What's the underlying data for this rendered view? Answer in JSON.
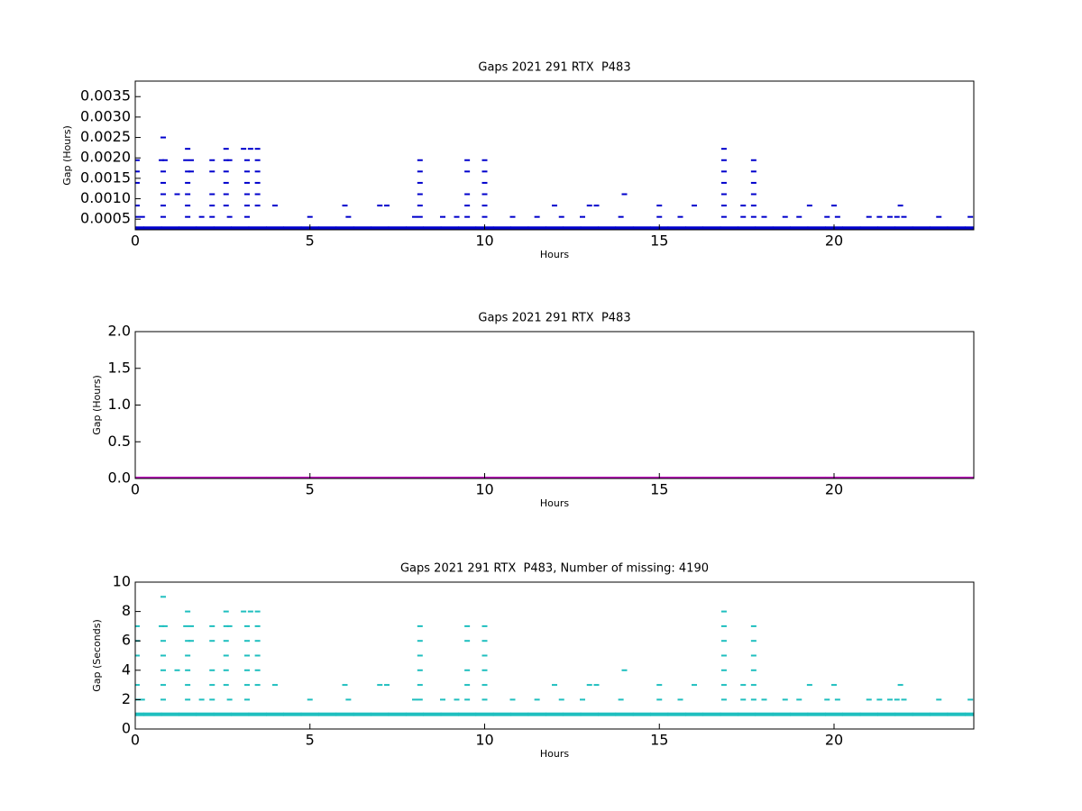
{
  "chart_data": [
    {
      "type": "scatter",
      "title": "Gaps 2021 291 RTX  P483",
      "x_label": "Hours",
      "y_label": "Gap (Hours)",
      "xlim": [
        0,
        24
      ],
      "xticks": [
        0,
        5,
        10,
        15,
        20
      ],
      "ylim": [
        0.00024,
        0.00388
      ],
      "yticks": [
        0.0005,
        {
          "value": 0.001,
          "label": "0.0010"
        },
        0.0015,
        {
          "value": 0.002,
          "label": "0.0020"
        },
        0.0025,
        {
          "value": 0.003,
          "label": "0.0030"
        },
        0.0035
      ],
      "series": [
        {
          "color": "#0000cc",
          "x": [
            0,
            0.5,
            1,
            1.5,
            2,
            2.5,
            3,
            3.5,
            4,
            4.5,
            5,
            5.5,
            6,
            6.5,
            7,
            7.5,
            8,
            8.5,
            9,
            9.5,
            10,
            10.5,
            11,
            11.5,
            12,
            12.5,
            13,
            13.5,
            14,
            14.5,
            15,
            15.5,
            16,
            16.5,
            17,
            17.5,
            18,
            18.5,
            19,
            19.5,
            20,
            20.5,
            21,
            21.5,
            22,
            22.5,
            23,
            23.5,
            24
          ],
          "values": [
            0.000278,
            0.000278,
            0.000278,
            0.000278,
            0.000278,
            0.000278,
            0.000278,
            0.000278,
            0.000278,
            0.000278,
            0.000278,
            0.000278,
            0.000278,
            0.000278,
            0.000278,
            0.000278,
            0.000278,
            0.000278,
            0.000278,
            0.000278,
            0.000278,
            0.000278,
            0.000278,
            0.000278,
            0.000278,
            0.000278,
            0.000278,
            0.000278,
            0.000278,
            0.000278,
            0.000278,
            0.000278,
            0.000278,
            0.000278,
            0.000278,
            0.000278,
            0.000278,
            0.000278,
            0.000278,
            0.000278,
            0.000278,
            0.000278,
            0.000278,
            0.000278,
            0.000278,
            0.000278,
            0.000278,
            0.000278,
            0.000278
          ]
        },
        {
          "color": "#0000cc",
          "x": [
            0.05,
            0.05,
            0.05,
            0.05,
            0.05,
            0.2,
            0.8,
            0.75,
            0.85,
            0.8,
            0.8,
            0.8,
            0.8,
            0.8,
            1.2,
            1.5,
            1.45,
            1.6,
            1.5,
            1.6,
            1.5,
            1.5,
            1.5,
            1.5,
            1.9,
            2.2,
            2.2,
            2.2,
            2.2,
            2.2,
            2.6,
            2.6,
            2.7,
            2.6,
            2.6,
            2.6,
            2.6,
            2.7,
            3.1,
            3.3,
            3.5,
            3.2,
            3.5,
            3.2,
            3.5,
            3.2,
            3.5,
            3.2,
            3.5,
            3.2,
            3.5,
            3.2,
            4.0,
            5.0,
            6.0,
            6.1,
            7.0,
            7.2,
            8.0,
            8.15,
            8.15,
            8.15,
            8.15,
            8.15,
            8.15,
            8.8,
            9.2,
            9.5,
            9.5,
            9.5,
            9.5,
            9.5,
            10.0,
            10.0,
            10.0,
            10.0,
            10.0,
            10.0,
            10.8,
            11.5,
            12.0,
            12.2,
            12.8,
            13.0,
            13.2,
            13.9,
            14.0,
            15.0,
            15.0,
            15.6,
            16.0,
            16.85,
            16.85,
            16.85,
            16.85,
            16.85,
            16.85,
            16.85,
            17.4,
            17.4,
            17.7,
            17.7,
            17.7,
            17.7,
            17.7,
            17.7,
            18.0,
            18.6,
            19.0,
            19.3,
            19.8,
            20.0,
            20.1,
            21.0,
            21.3,
            21.6,
            21.8,
            21.9,
            22.0,
            23.0,
            23.9
          ],
          "values": [
            0.001944,
            0.001667,
            0.001389,
            0.000833,
            0.000556,
            0.000556,
            0.0025,
            0.001944,
            0.001944,
            0.001667,
            0.001389,
            0.001111,
            0.000833,
            0.000556,
            0.001111,
            0.002222,
            0.001944,
            0.001944,
            0.001667,
            0.001667,
            0.001389,
            0.001111,
            0.000833,
            0.000556,
            0.000556,
            0.001944,
            0.001667,
            0.001111,
            0.000833,
            0.000556,
            0.002222,
            0.001944,
            0.001944,
            0.001667,
            0.001389,
            0.001111,
            0.000833,
            0.000556,
            0.002222,
            0.002222,
            0.002222,
            0.001944,
            0.001944,
            0.001667,
            0.001667,
            0.001389,
            0.001389,
            0.001111,
            0.001111,
            0.000833,
            0.000833,
            0.000556,
            0.000833,
            0.000556,
            0.000833,
            0.000556,
            0.000833,
            0.000833,
            0.000556,
            0.001944,
            0.001667,
            0.001389,
            0.001111,
            0.000833,
            0.000556,
            0.000556,
            0.000556,
            0.001944,
            0.001667,
            0.001111,
            0.000833,
            0.000556,
            0.001944,
            0.001667,
            0.001389,
            0.001111,
            0.000833,
            0.000556,
            0.000556,
            0.000556,
            0.000833,
            0.000556,
            0.000556,
            0.000833,
            0.000833,
            0.000556,
            0.001111,
            0.000833,
            0.000556,
            0.000556,
            0.000833,
            0.002222,
            0.001944,
            0.001667,
            0.001389,
            0.001111,
            0.000833,
            0.000556,
            0.000833,
            0.000556,
            0.001944,
            0.001667,
            0.001389,
            0.001111,
            0.000833,
            0.000556,
            0.000556,
            0.000556,
            0.000556,
            0.000833,
            0.000556,
            0.000833,
            0.000556,
            0.000556,
            0.000556,
            0.000556,
            0.000556,
            0.000833,
            0.000556,
            0.000556,
            0.000556
          ]
        }
      ]
    },
    {
      "type": "scatter",
      "title": "Gaps 2021 291 RTX  P483",
      "x_label": "Hours",
      "y_label": "Gap (Hours)",
      "xlim": [
        0,
        24
      ],
      "xticks": [
        0,
        5,
        10,
        15,
        20
      ],
      "ylim": [
        0,
        2
      ],
      "yticks": [
        {
          "value": 0,
          "label": "0.0"
        },
        0.5,
        {
          "value": 1,
          "label": "1.0"
        },
        1.5,
        {
          "value": 2,
          "label": "2.0"
        }
      ],
      "series": [
        {
          "color": "#bf00bf",
          "x": [
            0,
            0.5,
            1,
            1.5,
            2,
            2.5,
            3,
            3.5,
            4,
            4.5,
            5,
            5.5,
            6,
            6.5,
            7,
            7.5,
            8,
            8.5,
            9,
            9.5,
            10,
            10.5,
            11,
            11.5,
            12,
            12.5,
            13,
            13.5,
            14,
            14.5,
            15,
            15.5,
            16,
            16.5,
            17,
            17.5,
            18,
            18.5,
            19,
            19.5,
            20,
            20.5,
            21,
            21.5,
            22,
            22.5,
            23,
            23.5,
            24
          ],
          "values": [
            0.000278,
            0.000278,
            0.000278,
            0.000278,
            0.000278,
            0.000278,
            0.000278,
            0.000278,
            0.000278,
            0.000278,
            0.000278,
            0.000278,
            0.000278,
            0.000278,
            0.000278,
            0.000278,
            0.000278,
            0.000278,
            0.000278,
            0.000278,
            0.000278,
            0.000278,
            0.000278,
            0.000278,
            0.000278,
            0.000278,
            0.000278,
            0.000278,
            0.000278,
            0.000278,
            0.000278,
            0.000278,
            0.000278,
            0.000278,
            0.000278,
            0.000278,
            0.000278,
            0.000278,
            0.000278,
            0.000278,
            0.000278,
            0.000278,
            0.000278,
            0.000278,
            0.000278,
            0.000278,
            0.000278,
            0.000278,
            0.000278
          ]
        }
      ]
    },
    {
      "type": "scatter",
      "title": "Gaps 2021 291 RTX  P483, Number of missing: 4190",
      "x_label": "Hours",
      "y_label": "Gap (Seconds)",
      "xlim": [
        0,
        24
      ],
      "xticks": [
        0,
        5,
        10,
        15,
        20
      ],
      "ylim": [
        0,
        10
      ],
      "yticks": [
        0,
        2,
        4,
        6,
        8,
        10
      ],
      "series": [
        {
          "color": "#1fbfbf",
          "x": [
            0,
            0.5,
            1,
            1.5,
            2,
            2.5,
            3,
            3.5,
            4,
            4.5,
            5,
            5.5,
            6,
            6.5,
            7,
            7.5,
            8,
            8.5,
            9,
            9.5,
            10,
            10.5,
            11,
            11.5,
            12,
            12.5,
            13,
            13.5,
            14,
            14.5,
            15,
            15.5,
            16,
            16.5,
            17,
            17.5,
            18,
            18.5,
            19,
            19.5,
            20,
            20.5,
            21,
            21.5,
            22,
            22.5,
            23,
            23.5,
            24
          ],
          "values": [
            1,
            1,
            1,
            1,
            1,
            1,
            1,
            1,
            1,
            1,
            1,
            1,
            1,
            1,
            1,
            1,
            1,
            1,
            1,
            1,
            1,
            1,
            1,
            1,
            1,
            1,
            1,
            1,
            1,
            1,
            1,
            1,
            1,
            1,
            1,
            1,
            1,
            1,
            1,
            1,
            1,
            1,
            1,
            1,
            1,
            1,
            1,
            1,
            1
          ]
        },
        {
          "color": "#1fbfbf",
          "x": [
            0.05,
            0.05,
            0.05,
            0.05,
            0.05,
            0.2,
            0.8,
            0.75,
            0.85,
            0.8,
            0.8,
            0.8,
            0.8,
            0.8,
            1.2,
            1.5,
            1.45,
            1.6,
            1.5,
            1.6,
            1.5,
            1.5,
            1.5,
            1.5,
            1.9,
            2.2,
            2.2,
            2.2,
            2.2,
            2.2,
            2.6,
            2.6,
            2.7,
            2.6,
            2.6,
            2.6,
            2.6,
            2.7,
            3.1,
            3.3,
            3.5,
            3.2,
            3.5,
            3.2,
            3.5,
            3.2,
            3.5,
            3.2,
            3.5,
            3.2,
            3.5,
            3.2,
            4.0,
            5.0,
            6.0,
            6.1,
            7.0,
            7.2,
            8.0,
            8.15,
            8.15,
            8.15,
            8.15,
            8.15,
            8.15,
            8.8,
            9.2,
            9.5,
            9.5,
            9.5,
            9.5,
            9.5,
            10.0,
            10.0,
            10.0,
            10.0,
            10.0,
            10.0,
            10.8,
            11.5,
            12.0,
            12.2,
            12.8,
            13.0,
            13.2,
            13.9,
            14.0,
            15.0,
            15.0,
            15.6,
            16.0,
            16.85,
            16.85,
            16.85,
            16.85,
            16.85,
            16.85,
            16.85,
            17.4,
            17.4,
            17.7,
            17.7,
            17.7,
            17.7,
            17.7,
            17.7,
            18.0,
            18.6,
            19.0,
            19.3,
            19.8,
            20.0,
            20.1,
            21.0,
            21.3,
            21.6,
            21.8,
            21.9,
            22.0,
            23.0,
            23.9
          ],
          "values": [
            7,
            6,
            5,
            3,
            2,
            2,
            9,
            7,
            7,
            6,
            5,
            4,
            3,
            2,
            4,
            8,
            7,
            7,
            6,
            6,
            5,
            4,
            3,
            2,
            2,
            7,
            6,
            4,
            3,
            2,
            8,
            7,
            7,
            6,
            5,
            4,
            3,
            2,
            8,
            8,
            8,
            7,
            7,
            6,
            6,
            5,
            5,
            4,
            4,
            3,
            3,
            2,
            3,
            2,
            3,
            2,
            3,
            3,
            2,
            7,
            6,
            5,
            4,
            3,
            2,
            2,
            2,
            7,
            6,
            4,
            3,
            2,
            7,
            6,
            5,
            4,
            3,
            2,
            2,
            2,
            3,
            2,
            2,
            3,
            3,
            2,
            4,
            3,
            2,
            2,
            3,
            8,
            7,
            6,
            5,
            4,
            3,
            2,
            3,
            2,
            7,
            6,
            5,
            4,
            3,
            2,
            2,
            2,
            2,
            3,
            2,
            3,
            2,
            2,
            2,
            2,
            2,
            3,
            2,
            2,
            2
          ]
        }
      ]
    }
  ]
}
